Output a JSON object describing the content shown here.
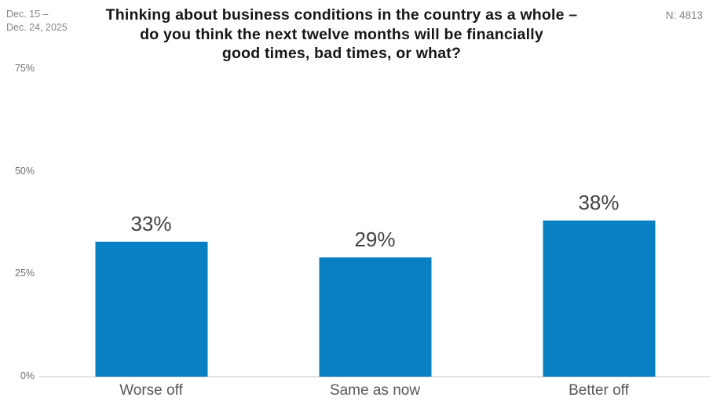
{
  "header": {
    "date_range": "Dec. 15 –\nDec. 24, 2025",
    "title_lines": "Thinking about business conditions in the country as a whole –\ndo you think the next twelve months will be financially\ngood times, bad times, or what?",
    "sample_size": "N: 4813"
  },
  "chart_data": {
    "type": "bar",
    "title": "Thinking about business conditions in the country as a whole – do you think the next twelve months will be financially good times, bad times, or what?",
    "categories": [
      "Worse off",
      "Same as now",
      "Better off"
    ],
    "values": [
      33,
      29,
      38
    ],
    "value_labels": [
      "33%",
      "29%",
      "38%"
    ],
    "xlabel": "",
    "ylabel": "",
    "ylim": [
      0,
      75
    ],
    "yticks": [
      {
        "value": 0,
        "label": "0%"
      },
      {
        "value": 25,
        "label": "25%"
      },
      {
        "value": 50,
        "label": "50%"
      },
      {
        "value": 75,
        "label": "75%"
      }
    ],
    "grid": false,
    "legend": false,
    "bar_color": "#0880c3",
    "value_label_color": "#414042",
    "category_label_color": "#58595b"
  }
}
